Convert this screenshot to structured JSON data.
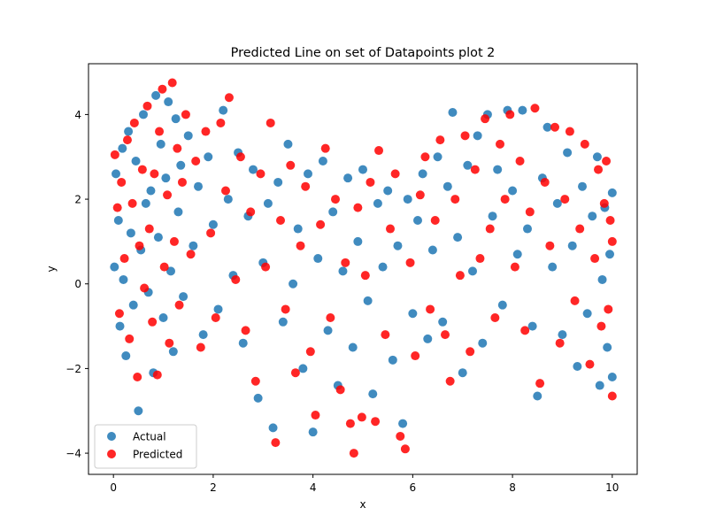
{
  "chart_data": {
    "type": "scatter",
    "title": "Predicted Line on set of Datapoints plot 2",
    "xlabel": "x",
    "ylabel": "y",
    "xlim": [
      -0.5,
      10.5
    ],
    "ylim": [
      -4.5,
      5.2
    ],
    "xticks": [
      0,
      2,
      4,
      6,
      8,
      10
    ],
    "yticks": [
      -4,
      -2,
      0,
      2,
      4
    ],
    "grid": false,
    "legend_position": "lower-left",
    "series": [
      {
        "name": "Actual",
        "color": "#1f77b4",
        "points": [
          [
            0.02,
            0.4
          ],
          [
            0.05,
            2.6
          ],
          [
            0.1,
            1.5
          ],
          [
            0.13,
            -1.0
          ],
          [
            0.18,
            3.2
          ],
          [
            0.2,
            0.1
          ],
          [
            0.25,
            -1.7
          ],
          [
            0.3,
            3.6
          ],
          [
            0.35,
            1.2
          ],
          [
            0.4,
            -0.5
          ],
          [
            0.45,
            2.9
          ],
          [
            0.5,
            -3.0
          ],
          [
            0.55,
            0.8
          ],
          [
            0.6,
            4.0
          ],
          [
            0.65,
            1.9
          ],
          [
            0.7,
            -0.2
          ],
          [
            0.75,
            2.2
          ],
          [
            0.8,
            -2.1
          ],
          [
            0.85,
            4.45
          ],
          [
            0.9,
            1.1
          ],
          [
            0.95,
            3.3
          ],
          [
            1.0,
            -0.8
          ],
          [
            1.05,
            2.5
          ],
          [
            1.1,
            4.3
          ],
          [
            1.15,
            0.3
          ],
          [
            1.2,
            -1.6
          ],
          [
            1.25,
            3.9
          ],
          [
            1.3,
            1.7
          ],
          [
            1.35,
            2.8
          ],
          [
            1.4,
            -0.3
          ],
          [
            1.5,
            3.5
          ],
          [
            1.6,
            0.9
          ],
          [
            1.7,
            2.3
          ],
          [
            1.8,
            -1.2
          ],
          [
            1.9,
            3.0
          ],
          [
            2.0,
            1.4
          ],
          [
            2.1,
            -0.6
          ],
          [
            2.2,
            4.1
          ],
          [
            2.3,
            2.0
          ],
          [
            2.4,
            0.2
          ],
          [
            2.5,
            3.1
          ],
          [
            2.6,
            -1.4
          ],
          [
            2.7,
            1.6
          ],
          [
            2.8,
            2.7
          ],
          [
            2.9,
            -2.7
          ],
          [
            3.0,
            0.5
          ],
          [
            3.1,
            1.9
          ],
          [
            3.2,
            -3.4
          ],
          [
            3.3,
            2.4
          ],
          [
            3.4,
            -0.9
          ],
          [
            3.5,
            3.3
          ],
          [
            3.6,
            0.0
          ],
          [
            3.7,
            1.3
          ],
          [
            3.8,
            -2.0
          ],
          [
            3.9,
            2.6
          ],
          [
            4.0,
            -3.5
          ],
          [
            4.1,
            0.6
          ],
          [
            4.2,
            2.9
          ],
          [
            4.3,
            -1.1
          ],
          [
            4.4,
            1.7
          ],
          [
            4.5,
            -2.4
          ],
          [
            4.6,
            0.3
          ],
          [
            4.7,
            2.5
          ],
          [
            4.8,
            -1.5
          ],
          [
            4.9,
            1.0
          ],
          [
            5.0,
            2.7
          ],
          [
            5.1,
            -0.4
          ],
          [
            5.2,
            -2.6
          ],
          [
            5.3,
            1.9
          ],
          [
            5.4,
            0.4
          ],
          [
            5.5,
            2.2
          ],
          [
            5.6,
            -1.8
          ],
          [
            5.7,
            0.9
          ],
          [
            5.8,
            -3.3
          ],
          [
            5.9,
            2.0
          ],
          [
            6.0,
            -0.7
          ],
          [
            6.1,
            1.5
          ],
          [
            6.2,
            2.6
          ],
          [
            6.3,
            -1.3
          ],
          [
            6.4,
            0.8
          ],
          [
            6.5,
            3.0
          ],
          [
            6.6,
            -0.9
          ],
          [
            6.7,
            2.3
          ],
          [
            6.8,
            4.05
          ],
          [
            6.9,
            1.1
          ],
          [
            7.0,
            -2.1
          ],
          [
            7.1,
            2.8
          ],
          [
            7.2,
            0.3
          ],
          [
            7.3,
            3.5
          ],
          [
            7.4,
            -1.4
          ],
          [
            7.5,
            4.0
          ],
          [
            7.6,
            1.6
          ],
          [
            7.7,
            2.7
          ],
          [
            7.8,
            -0.5
          ],
          [
            7.9,
            4.1
          ],
          [
            8.0,
            2.2
          ],
          [
            8.1,
            0.7
          ],
          [
            8.2,
            4.1
          ],
          [
            8.3,
            1.3
          ],
          [
            8.4,
            -1.0
          ],
          [
            8.5,
            -2.65
          ],
          [
            8.6,
            2.5
          ],
          [
            8.7,
            3.7
          ],
          [
            8.8,
            0.4
          ],
          [
            8.9,
            1.9
          ],
          [
            9.0,
            -1.2
          ],
          [
            9.1,
            3.1
          ],
          [
            9.2,
            0.9
          ],
          [
            9.3,
            -1.95
          ],
          [
            9.4,
            2.3
          ],
          [
            9.5,
            -0.7
          ],
          [
            9.6,
            1.6
          ],
          [
            9.7,
            3.0
          ],
          [
            9.75,
            -2.4
          ],
          [
            9.8,
            0.1
          ],
          [
            9.85,
            1.8
          ],
          [
            9.9,
            -1.5
          ],
          [
            9.95,
            0.7
          ],
          [
            10.0,
            2.15
          ],
          [
            10.0,
            -2.2
          ]
        ]
      },
      {
        "name": "Predicted",
        "color": "#ff0000",
        "points": [
          [
            0.03,
            3.05
          ],
          [
            0.08,
            1.8
          ],
          [
            0.12,
            -0.7
          ],
          [
            0.16,
            2.4
          ],
          [
            0.22,
            0.6
          ],
          [
            0.28,
            3.4
          ],
          [
            0.32,
            -1.3
          ],
          [
            0.38,
            1.9
          ],
          [
            0.42,
            3.8
          ],
          [
            0.48,
            -2.2
          ],
          [
            0.52,
            0.9
          ],
          [
            0.58,
            2.7
          ],
          [
            0.62,
            -0.1
          ],
          [
            0.68,
            4.2
          ],
          [
            0.72,
            1.3
          ],
          [
            0.78,
            -0.9
          ],
          [
            0.82,
            2.6
          ],
          [
            0.88,
            -2.15
          ],
          [
            0.92,
            3.6
          ],
          [
            0.98,
            4.6
          ],
          [
            1.02,
            0.4
          ],
          [
            1.08,
            2.1
          ],
          [
            1.12,
            -1.4
          ],
          [
            1.18,
            4.75
          ],
          [
            1.22,
            1.0
          ],
          [
            1.28,
            3.2
          ],
          [
            1.32,
            -0.5
          ],
          [
            1.38,
            2.4
          ],
          [
            1.45,
            4.0
          ],
          [
            1.55,
            0.7
          ],
          [
            1.65,
            2.9
          ],
          [
            1.75,
            -1.5
          ],
          [
            1.85,
            3.6
          ],
          [
            1.95,
            1.2
          ],
          [
            2.05,
            -0.8
          ],
          [
            2.15,
            3.8
          ],
          [
            2.25,
            2.2
          ],
          [
            2.32,
            4.4
          ],
          [
            2.45,
            0.1
          ],
          [
            2.55,
            3.0
          ],
          [
            2.65,
            -1.1
          ],
          [
            2.75,
            1.7
          ],
          [
            2.85,
            -2.3
          ],
          [
            2.95,
            2.6
          ],
          [
            3.05,
            0.4
          ],
          [
            3.15,
            3.8
          ],
          [
            3.25,
            -3.75
          ],
          [
            3.35,
            1.5
          ],
          [
            3.45,
            -0.6
          ],
          [
            3.55,
            2.8
          ],
          [
            3.65,
            -2.1
          ],
          [
            3.75,
            0.9
          ],
          [
            3.85,
            2.3
          ],
          [
            3.95,
            -1.6
          ],
          [
            4.05,
            -3.1
          ],
          [
            4.15,
            1.4
          ],
          [
            4.25,
            3.2
          ],
          [
            4.35,
            -0.8
          ],
          [
            4.45,
            2.0
          ],
          [
            4.55,
            -2.5
          ],
          [
            4.65,
            0.5
          ],
          [
            4.75,
            -3.3
          ],
          [
            4.82,
            -4.0
          ],
          [
            4.9,
            1.8
          ],
          [
            4.98,
            -3.15
          ],
          [
            5.05,
            0.2
          ],
          [
            5.15,
            2.4
          ],
          [
            5.25,
            -3.25
          ],
          [
            5.32,
            3.15
          ],
          [
            5.45,
            -1.2
          ],
          [
            5.55,
            1.3
          ],
          [
            5.65,
            2.6
          ],
          [
            5.75,
            -3.6
          ],
          [
            5.85,
            -3.9
          ],
          [
            5.95,
            0.5
          ],
          [
            6.05,
            -1.7
          ],
          [
            6.15,
            2.1
          ],
          [
            6.25,
            3.0
          ],
          [
            6.35,
            -0.6
          ],
          [
            6.45,
            1.5
          ],
          [
            6.55,
            3.4
          ],
          [
            6.65,
            -1.2
          ],
          [
            6.75,
            -2.3
          ],
          [
            6.85,
            2.0
          ],
          [
            6.95,
            0.2
          ],
          [
            7.05,
            3.5
          ],
          [
            7.15,
            -1.6
          ],
          [
            7.25,
            2.7
          ],
          [
            7.35,
            0.6
          ],
          [
            7.45,
            3.9
          ],
          [
            7.55,
            1.3
          ],
          [
            7.65,
            -0.8
          ],
          [
            7.75,
            3.3
          ],
          [
            7.85,
            2.0
          ],
          [
            7.95,
            4.0
          ],
          [
            8.05,
            0.4
          ],
          [
            8.15,
            2.9
          ],
          [
            8.25,
            -1.1
          ],
          [
            8.35,
            1.7
          ],
          [
            8.45,
            4.15
          ],
          [
            8.55,
            -2.35
          ],
          [
            8.65,
            2.4
          ],
          [
            8.75,
            0.9
          ],
          [
            8.85,
            3.7
          ],
          [
            8.95,
            -1.4
          ],
          [
            9.05,
            2.0
          ],
          [
            9.15,
            3.6
          ],
          [
            9.25,
            -0.4
          ],
          [
            9.35,
            1.3
          ],
          [
            9.45,
            3.3
          ],
          [
            9.55,
            -1.9
          ],
          [
            9.65,
            0.6
          ],
          [
            9.72,
            2.7
          ],
          [
            9.78,
            -1.0
          ],
          [
            9.84,
            1.9
          ],
          [
            9.88,
            2.9
          ],
          [
            9.92,
            -0.6
          ],
          [
            9.96,
            1.5
          ],
          [
            10.0,
            -2.65
          ],
          [
            10.0,
            1.0
          ]
        ]
      }
    ]
  }
}
